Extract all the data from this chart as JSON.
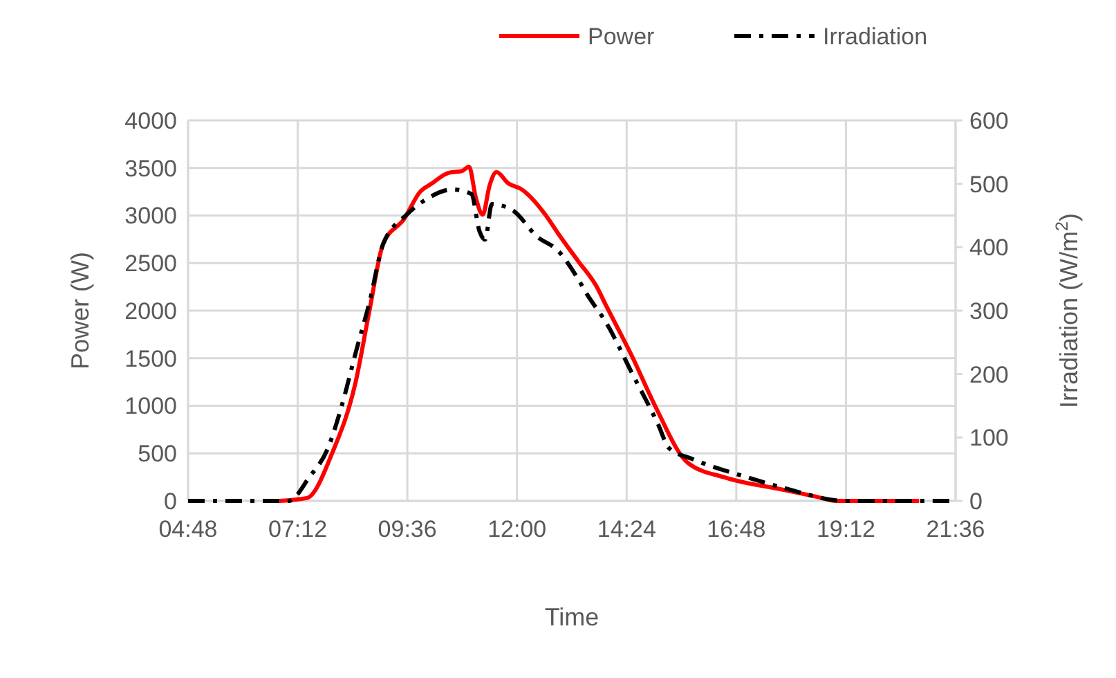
{
  "chart_data": {
    "type": "line",
    "xlabel": "Time",
    "ylabel": "Power (W)",
    "y2label": "Irradiation (W/m$^{2}$)",
    "xlim": [
      4.8,
      21.6
    ],
    "xticks": [
      {
        "value": 4.8,
        "label": "04:48"
      },
      {
        "value": 7.2,
        "label": "07:12"
      },
      {
        "value": 9.6,
        "label": "09:36"
      },
      {
        "value": 12,
        "label": "12:00"
      },
      {
        "value": 14.4,
        "label": "14:24"
      },
      {
        "value": 16.8,
        "label": "16:48"
      },
      {
        "value": 19.2,
        "label": "19:12"
      },
      {
        "value": 21.6,
        "label": "21:36"
      }
    ],
    "ylim": [
      0,
      4000
    ],
    "yticks": [
      0,
      500,
      1000,
      1500,
      2000,
      2500,
      3000,
      3500,
      4000
    ],
    "y2lim": [
      0,
      600
    ],
    "y2ticks": [
      0,
      100,
      200,
      300,
      400,
      500,
      600
    ],
    "grid": true,
    "legend": "top right",
    "series": [
      {
        "name": "Power",
        "color": "#ff0000",
        "line_style": "solid",
        "x": [
          6.8,
          7.4,
          7.96,
          8.47,
          8.77,
          9.07,
          9.53,
          9.88,
          10.14,
          10.49,
          10.8,
          10.95,
          11.1,
          11.25,
          11.4,
          11.55,
          11.81,
          12.11,
          12.62,
          12.9,
          13.33,
          13.73,
          13.96,
          14.52,
          15.03,
          15.74,
          16.55,
          17.86,
          18.5,
          19.0,
          20.8
        ],
        "values": [
          0,
          30,
          509,
          1254,
          2000,
          2702,
          2965,
          3250,
          3338,
          3447,
          3469,
          3513,
          3184,
          3009,
          3316,
          3456,
          3338,
          3272,
          3009,
          2811,
          2526,
          2263,
          2044,
          1518,
          991,
          399,
          246,
          114,
          50,
          0,
          0
        ]
      },
      {
        "name": "Irradiation",
        "color": "#000000",
        "line_style": "dashdot",
        "axis": "y2",
        "x": [
          4.8,
          7.0,
          7.45,
          7.86,
          8.16,
          8.47,
          8.77,
          9.07,
          9.58,
          9.98,
          10.59,
          11.0,
          11.18,
          11.3,
          11.45,
          11.91,
          12.42,
          12.93,
          13.31,
          13.53,
          13.96,
          14.52,
          15.08,
          15.33,
          15.84,
          17.05,
          17.86,
          19.2,
          21.6
        ],
        "values": [
          0,
          0,
          37,
          83,
          149,
          234,
          313,
          405,
          451,
          474,
          491,
          484,
          425,
          412,
          468,
          458,
          418,
          392,
          353,
          326,
          280,
          201,
          122,
          83,
          66,
          37,
          20,
          0,
          0
        ]
      }
    ]
  }
}
